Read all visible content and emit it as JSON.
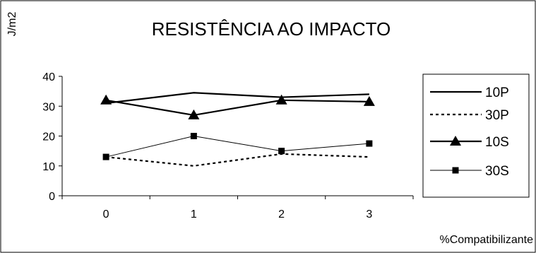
{
  "chart_data": {
    "type": "line",
    "title": "RESISTÊNCIA AO IMPACTO",
    "xlabel": "%Compatibilizante",
    "ylabel": "J/m2",
    "categories": [
      "0",
      "1",
      "2",
      "3"
    ],
    "ylim": [
      0,
      40
    ],
    "yticks": [
      "0",
      "10",
      "20",
      "30",
      "40"
    ],
    "grid": false,
    "legend_position": "right",
    "series": [
      {
        "name": "10P",
        "values": [
          31,
          34.5,
          33,
          34
        ],
        "line": "solid",
        "weight": "thick",
        "marker": "none"
      },
      {
        "name": "30P",
        "values": [
          13,
          10,
          14,
          13
        ],
        "line": "dashed",
        "weight": "thick",
        "marker": "none"
      },
      {
        "name": "10S",
        "values": [
          32,
          27,
          32,
          31.5
        ],
        "line": "solid",
        "weight": "thick",
        "marker": "triangle"
      },
      {
        "name": "30S",
        "values": [
          13,
          20,
          15,
          17.5
        ],
        "line": "solid",
        "weight": "thin",
        "marker": "square"
      }
    ]
  }
}
